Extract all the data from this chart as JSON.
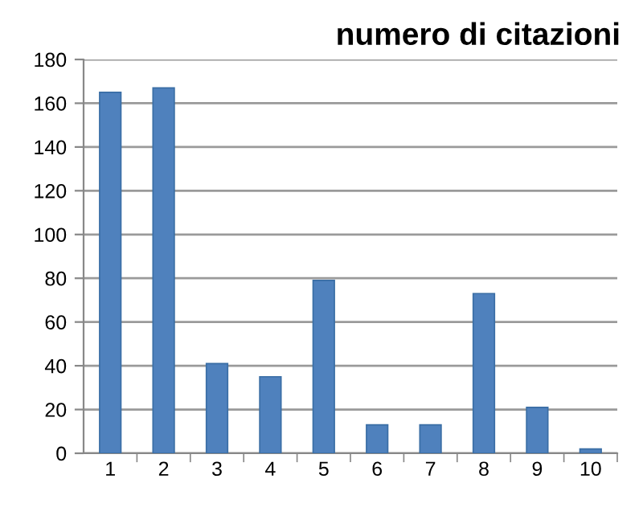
{
  "chart_data": {
    "type": "bar",
    "title": "numero di citazioni",
    "categories": [
      "1",
      "2",
      "3",
      "4",
      "5",
      "6",
      "7",
      "8",
      "9",
      "10"
    ],
    "values": [
      165,
      167,
      41,
      35,
      79,
      13,
      13,
      73,
      21,
      2
    ],
    "color": "#4f81bd",
    "ylim": [
      0,
      180
    ],
    "yticks": [
      0,
      20,
      40,
      60,
      80,
      100,
      120,
      140,
      160,
      180
    ],
    "grid": "y"
  }
}
